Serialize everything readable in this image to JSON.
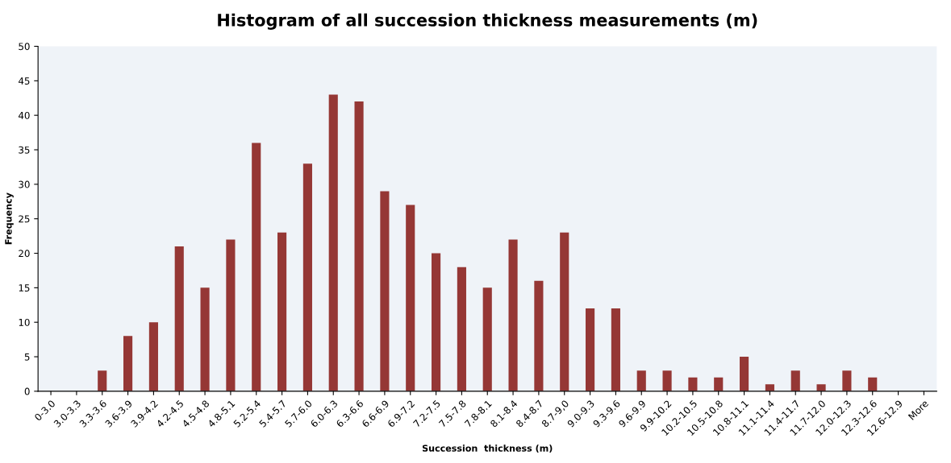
{
  "chart_data": {
    "type": "bar",
    "title": "Histogram of all succession thickness measurements (m)",
    "xlabel": "Succession  thickness (m)",
    "ylabel": "Frequency",
    "categories": [
      "0-3.0",
      "3.0-3.3",
      "3.3-3.6",
      "3.6-3.9",
      "3.9-4.2",
      "4.2-4.5",
      "4.5-4.8",
      "4.8-5.1",
      "5.2-5.4",
      "5.4-5.7",
      "5.7-6.0",
      "6.0-6.3",
      "6.3-6.6",
      "6.6-6.9",
      "6.9-7.2",
      "7.2-7.5",
      "7.5-7.8",
      "7.8-8.1",
      "8.1-8.4",
      "8.4-8.7",
      "8.7-9,0",
      "9.0-9.3",
      "9.3-9.6",
      "9.6-9.9",
      "9.9-10.2",
      "10.2-10.5",
      "10.5-10.8",
      "10.8-11.1",
      "11.1-11.4",
      "11.4-11.7",
      "11.7-12.0",
      "12.0-12.3",
      "12.3-12.6",
      "12.6-12.9",
      "More"
    ],
    "values": [
      0,
      0,
      3,
      8,
      10,
      21,
      15,
      22,
      36,
      23,
      33,
      43,
      42,
      29,
      27,
      20,
      18,
      15,
      22,
      16,
      23,
      12,
      12,
      3,
      3,
      2,
      2,
      5,
      1,
      3,
      1,
      3,
      2,
      0,
      0
    ],
    "color": "#953735",
    "ylim": [
      0,
      50
    ],
    "yticks": [
      0,
      5,
      10,
      15,
      20,
      25,
      30,
      35,
      40,
      45,
      50
    ],
    "grid": false,
    "legend": false
  }
}
